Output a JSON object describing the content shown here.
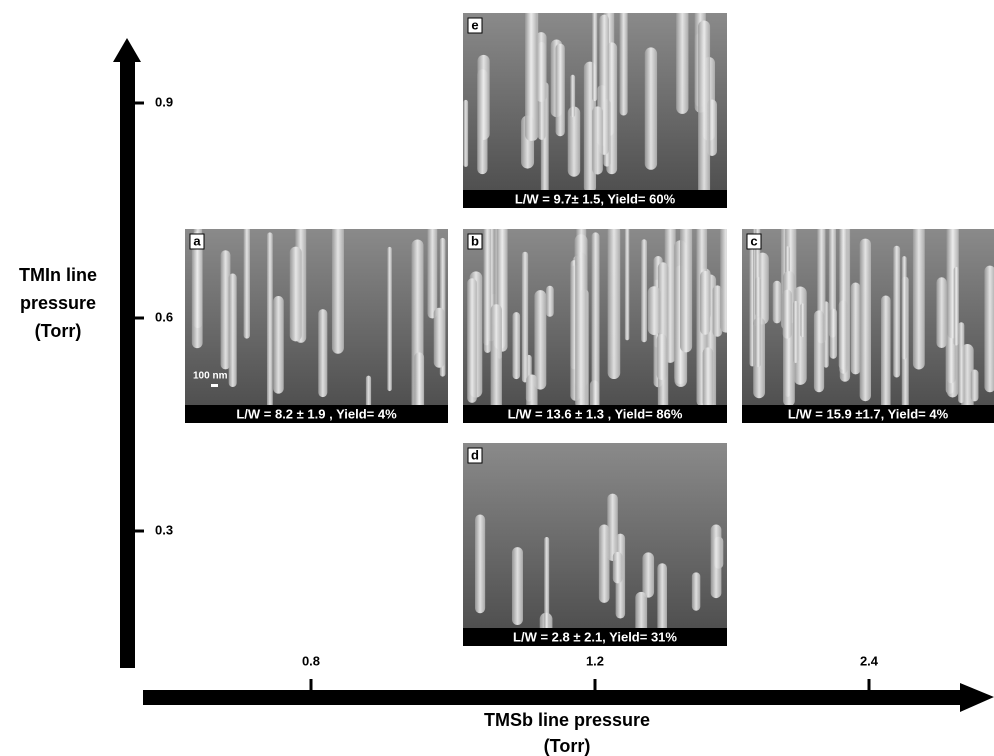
{
  "y_axis": {
    "label": [
      "TMIn line",
      "pressure",
      "(Torr)"
    ],
    "ticks": [
      "0.9",
      "0.6",
      "0.3"
    ]
  },
  "x_axis": {
    "label": [
      "TMSb line pressure",
      "(Torr)"
    ],
    "ticks": [
      "0.8",
      "1.2",
      "2.4"
    ]
  },
  "panels": [
    {
      "letter": "e",
      "caption": "L/W = 9.7± 1.5, Yield= 60%"
    },
    {
      "letter": "a",
      "scale_bar": "100 nm",
      "caption": "L/W = 8.2 ± 1.9 , Yield= 4%"
    },
    {
      "letter": "b",
      "caption": "L/W = 13.6 ± 1.3 , Yield= 86%"
    },
    {
      "letter": "c",
      "caption": "L/W = 15.9 ±1.7, Yield= 4%"
    },
    {
      "letter": "d",
      "caption": "L/W = 2.8 ± 2.1, Yield= 31%"
    }
  ]
}
